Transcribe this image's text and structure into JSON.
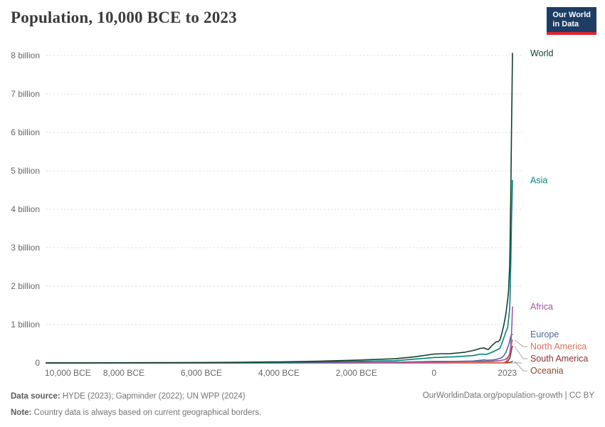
{
  "colors": {
    "title": "#3b3b3b",
    "logo_background": "#1d3d63",
    "logo_accent": "#e0242f",
    "axis_text": "#666666",
    "gridline": "#dddddd",
    "baseline": "#9a9a9a",
    "connector": "#999999",
    "footer_text": "#757575"
  },
  "header": {
    "title": "Population, 10,000 BCE to 2023",
    "logo": {
      "line1": "Our World",
      "line2": "in Data"
    }
  },
  "footer": {
    "source_label": "Data source:",
    "source_text": "HYDE (2023); Gapminder (2022); UN WPP (2024)",
    "note_label": "Note:",
    "note_text": "Country data is always based on current geographical borders.",
    "credit": "OurWorldinData.org/population-growth | CC BY"
  },
  "chart_data": {
    "type": "line",
    "title": "Population, 10,000 BCE to 2023",
    "xlabel": "",
    "ylabel": "",
    "legend_position": "right-end-labels",
    "grid": "horizontal-dashed",
    "x_axis": {
      "range": [
        -10000,
        2023
      ],
      "ticks": [
        {
          "value": -10000,
          "label": "10,000 BCE"
        },
        {
          "value": -8000,
          "label": "8,000 BCE"
        },
        {
          "value": -6000,
          "label": "6,000 BCE"
        },
        {
          "value": -4000,
          "label": "4,000 BCE"
        },
        {
          "value": -2000,
          "label": "2,000 BCE"
        },
        {
          "value": 0,
          "label": "0"
        },
        {
          "value": 2023,
          "label": "2023"
        }
      ]
    },
    "y_axis": {
      "range": [
        0,
        8
      ],
      "unit": "billion people",
      "ticks": [
        {
          "value": 0,
          "label": "0"
        },
        {
          "value": 1,
          "label": "1 billion"
        },
        {
          "value": 2,
          "label": "2 billion"
        },
        {
          "value": 3,
          "label": "3 billion"
        },
        {
          "value": 4,
          "label": "4 billion"
        },
        {
          "value": 5,
          "label": "5 billion"
        },
        {
          "value": 6,
          "label": "6 billion"
        },
        {
          "value": 7,
          "label": "7 billion"
        },
        {
          "value": 8,
          "label": "8 billion"
        }
      ]
    },
    "series": [
      {
        "name": "World",
        "color": "#143f28",
        "points": [
          [
            -10000,
            0.004
          ],
          [
            -9000,
            0.004
          ],
          [
            -8000,
            0.005
          ],
          [
            -7000,
            0.008
          ],
          [
            -6000,
            0.011
          ],
          [
            -5000,
            0.019
          ],
          [
            -4000,
            0.028
          ],
          [
            -3000,
            0.045
          ],
          [
            -2000,
            0.072
          ],
          [
            -1000,
            0.11
          ],
          [
            -500,
            0.16
          ],
          [
            0,
            0.232
          ],
          [
            200,
            0.24
          ],
          [
            400,
            0.24
          ],
          [
            600,
            0.26
          ],
          [
            800,
            0.28
          ],
          [
            1000,
            0.323
          ],
          [
            1100,
            0.35
          ],
          [
            1200,
            0.38
          ],
          [
            1300,
            0.39
          ],
          [
            1350,
            0.36
          ],
          [
            1400,
            0.35
          ],
          [
            1500,
            0.46
          ],
          [
            1600,
            0.55
          ],
          [
            1650,
            0.55
          ],
          [
            1700,
            0.6
          ],
          [
            1750,
            0.77
          ],
          [
            1800,
            0.99
          ],
          [
            1850,
            1.26
          ],
          [
            1900,
            1.65
          ],
          [
            1920,
            1.86
          ],
          [
            1930,
            2.07
          ],
          [
            1940,
            2.3
          ],
          [
            1950,
            2.5
          ],
          [
            1960,
            3.02
          ],
          [
            1970,
            3.7
          ],
          [
            1980,
            4.44
          ],
          [
            1990,
            5.32
          ],
          [
            2000,
            6.14
          ],
          [
            2010,
            6.96
          ],
          [
            2023,
            8.06
          ]
        ]
      },
      {
        "name": "Asia",
        "color": "#00847e",
        "points": [
          [
            -10000,
            0.002
          ],
          [
            -8000,
            0.003
          ],
          [
            -6000,
            0.006
          ],
          [
            -4000,
            0.014
          ],
          [
            -2000,
            0.04
          ],
          [
            -1000,
            0.06
          ],
          [
            0,
            0.14
          ],
          [
            500,
            0.16
          ],
          [
            1000,
            0.19
          ],
          [
            1200,
            0.23
          ],
          [
            1350,
            0.22
          ],
          [
            1500,
            0.28
          ],
          [
            1700,
            0.38
          ],
          [
            1800,
            0.65
          ],
          [
            1850,
            0.8
          ],
          [
            1900,
            0.93
          ],
          [
            1950,
            1.4
          ],
          [
            1960,
            1.7
          ],
          [
            1970,
            2.14
          ],
          [
            1980,
            2.63
          ],
          [
            1990,
            3.21
          ],
          [
            2000,
            3.74
          ],
          [
            2010,
            4.17
          ],
          [
            2023,
            4.75
          ]
        ]
      },
      {
        "name": "Africa",
        "color": "#a2559c",
        "points": [
          [
            -10000,
            0.001
          ],
          [
            -6000,
            0.002
          ],
          [
            -4000,
            0.004
          ],
          [
            -2000,
            0.01
          ],
          [
            0,
            0.023
          ],
          [
            500,
            0.03
          ],
          [
            1000,
            0.039
          ],
          [
            1500,
            0.047
          ],
          [
            1700,
            0.061
          ],
          [
            1800,
            0.081
          ],
          [
            1850,
            0.1
          ],
          [
            1900,
            0.14
          ],
          [
            1950,
            0.23
          ],
          [
            1970,
            0.37
          ],
          [
            1980,
            0.48
          ],
          [
            1990,
            0.63
          ],
          [
            2000,
            0.82
          ],
          [
            2010,
            1.04
          ],
          [
            2023,
            1.46
          ]
        ]
      },
      {
        "name": "Europe",
        "color": "#4c6a9c",
        "points": [
          [
            -10000,
            0.001
          ],
          [
            -4000,
            0.004
          ],
          [
            -2000,
            0.01
          ],
          [
            -1000,
            0.02
          ],
          [
            0,
            0.04
          ],
          [
            500,
            0.04
          ],
          [
            1000,
            0.05
          ],
          [
            1300,
            0.08
          ],
          [
            1350,
            0.07
          ],
          [
            1500,
            0.078
          ],
          [
            1600,
            0.09
          ],
          [
            1700,
            0.12
          ],
          [
            1750,
            0.14
          ],
          [
            1800,
            0.19
          ],
          [
            1850,
            0.27
          ],
          [
            1900,
            0.4
          ],
          [
            1950,
            0.55
          ],
          [
            1970,
            0.66
          ],
          [
            1990,
            0.72
          ],
          [
            2000,
            0.73
          ],
          [
            2010,
            0.74
          ],
          [
            2023,
            0.74
          ]
        ]
      },
      {
        "name": "North America",
        "color": "#e56e5a",
        "points": [
          [
            -10000,
            0
          ],
          [
            0,
            0.002
          ],
          [
            1000,
            0.003
          ],
          [
            1500,
            0.006
          ],
          [
            1700,
            0.003
          ],
          [
            1800,
            0.012
          ],
          [
            1850,
            0.033
          ],
          [
            1900,
            0.106
          ],
          [
            1950,
            0.227
          ],
          [
            1970,
            0.32
          ],
          [
            1990,
            0.42
          ],
          [
            2000,
            0.486
          ],
          [
            2010,
            0.54
          ],
          [
            2023,
            0.6
          ]
        ]
      },
      {
        "name": "South America",
        "color": "#883039",
        "points": [
          [
            -10000,
            0
          ],
          [
            0,
            0.004
          ],
          [
            1000,
            0.008
          ],
          [
            1500,
            0.011
          ],
          [
            1700,
            0.008
          ],
          [
            1800,
            0.012
          ],
          [
            1850,
            0.02
          ],
          [
            1900,
            0.038
          ],
          [
            1950,
            0.114
          ],
          [
            1970,
            0.192
          ],
          [
            1990,
            0.297
          ],
          [
            2000,
            0.349
          ],
          [
            2010,
            0.393
          ],
          [
            2023,
            0.434
          ]
        ]
      },
      {
        "name": "Oceania",
        "color": "#8c4a26",
        "points": [
          [
            -10000,
            0
          ],
          [
            0,
            0.001
          ],
          [
            1500,
            0.002
          ],
          [
            1800,
            0.002
          ],
          [
            1900,
            0.006
          ],
          [
            1950,
            0.013
          ],
          [
            1980,
            0.023
          ],
          [
            2000,
            0.031
          ],
          [
            2023,
            0.045
          ]
        ]
      }
    ]
  }
}
